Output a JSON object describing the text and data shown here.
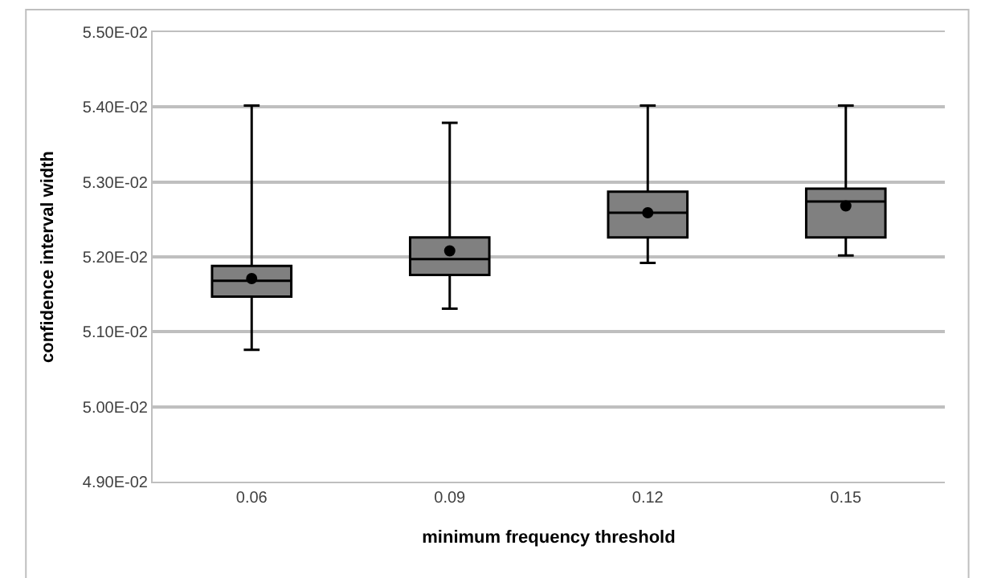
{
  "chart_data": {
    "type": "box",
    "xlabel": "minimum frequency threshold",
    "ylabel": "confidence interval width",
    "categories": [
      "0.06",
      "0.09",
      "0.12",
      "0.15"
    ],
    "boxes": [
      {
        "low": 0.05076,
        "q1": 0.05147,
        "median": 0.05168,
        "q3": 0.05188,
        "high": 0.05402,
        "mean": 0.05171
      },
      {
        "low": 0.05131,
        "q1": 0.05176,
        "median": 0.05197,
        "q3": 0.05226,
        "high": 0.05379,
        "mean": 0.05208
      },
      {
        "low": 0.05192,
        "q1": 0.05226,
        "median": 0.05259,
        "q3": 0.05287,
        "high": 0.05402,
        "mean": 0.05259
      },
      {
        "low": 0.05202,
        "q1": 0.05226,
        "median": 0.05274,
        "q3": 0.05291,
        "high": 0.05402,
        "mean": 0.05268
      }
    ],
    "color": "#808080",
    "ylim": [
      0.049,
      0.055
    ],
    "yticks": [
      {
        "value": 0.049,
        "label": "4.90E-02"
      },
      {
        "value": 0.05,
        "label": "5.00E-02"
      },
      {
        "value": 0.051,
        "label": "5.10E-02"
      },
      {
        "value": 0.052,
        "label": "5.20E-02"
      },
      {
        "value": 0.053,
        "label": "5.30E-02"
      },
      {
        "value": 0.054,
        "label": "5.40E-02"
      },
      {
        "value": 0.055,
        "label": "5.50E-02"
      }
    ],
    "grid": "y",
    "marker": "circle"
  }
}
